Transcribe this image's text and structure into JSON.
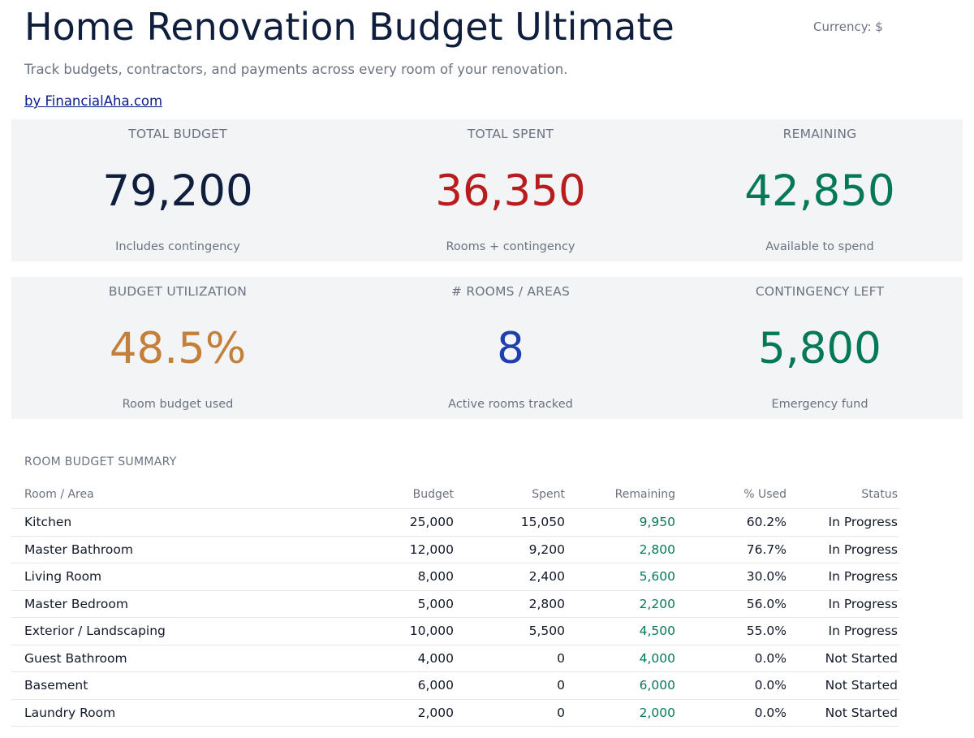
{
  "header": {
    "title": "Home Renovation Budget Ultimate",
    "currency": "Currency: $",
    "subtitle": "Track budgets, contractors, and payments across every room of your renovation.",
    "byline": "by FinancialAha.com"
  },
  "kpis": {
    "total_budget": {
      "label": "TOTAL BUDGET",
      "value": "79,200",
      "note": "Includes contingency"
    },
    "total_spent": {
      "label": "TOTAL SPENT",
      "value": "36,350",
      "note": "Rooms + contingency"
    },
    "remaining": {
      "label": "REMAINING",
      "value": "42,850",
      "note": "Available to spend"
    },
    "utilization": {
      "label": "BUDGET UTILIZATION",
      "value": "48.5%",
      "note": "Room budget used"
    },
    "rooms": {
      "label": "# ROOMS / AREAS",
      "value": "8",
      "note": "Active rooms tracked"
    },
    "contingency": {
      "label": "CONTINGENCY LEFT",
      "value": "5,800",
      "note": "Emergency fund"
    }
  },
  "summary": {
    "title": "ROOM BUDGET SUMMARY",
    "columns": {
      "room": "Room / Area",
      "budget": "Budget",
      "spent": "Spent",
      "remaining": "Remaining",
      "pct": "% Used",
      "status": "Status"
    },
    "rows": [
      {
        "room": "Kitchen",
        "budget": "25,000",
        "spent": "15,050",
        "remaining": "9,950",
        "pct": "60.2%",
        "status": "In Progress"
      },
      {
        "room": "Master Bathroom",
        "budget": "12,000",
        "spent": "9,200",
        "remaining": "2,800",
        "pct": "76.7%",
        "status": "In Progress"
      },
      {
        "room": "Living Room",
        "budget": "8,000",
        "spent": "2,400",
        "remaining": "5,600",
        "pct": "30.0%",
        "status": "In Progress"
      },
      {
        "room": "Master Bedroom",
        "budget": "5,000",
        "spent": "2,800",
        "remaining": "2,200",
        "pct": "56.0%",
        "status": "In Progress"
      },
      {
        "room": "Exterior / Landscaping",
        "budget": "10,000",
        "spent": "5,500",
        "remaining": "4,500",
        "pct": "55.0%",
        "status": "In Progress"
      },
      {
        "room": "Guest Bathroom",
        "budget": "4,000",
        "spent": "0",
        "remaining": "4,000",
        "pct": "0.0%",
        "status": "Not Started"
      },
      {
        "room": "Basement",
        "budget": "6,000",
        "spent": "0",
        "remaining": "6,000",
        "pct": "0.0%",
        "status": "Not Started"
      },
      {
        "room": "Laundry Room",
        "budget": "2,000",
        "spent": "0",
        "remaining": "2,000",
        "pct": "0.0%",
        "status": "Not Started"
      }
    ]
  },
  "colors": {
    "navy": "#0f1e3d",
    "spent_red": "#b91c1c",
    "remaining_green": "#047857",
    "utilization_amber": "#c47f3b",
    "rooms_blue": "#1e40af",
    "panel_bg": "#f3f4f6"
  }
}
